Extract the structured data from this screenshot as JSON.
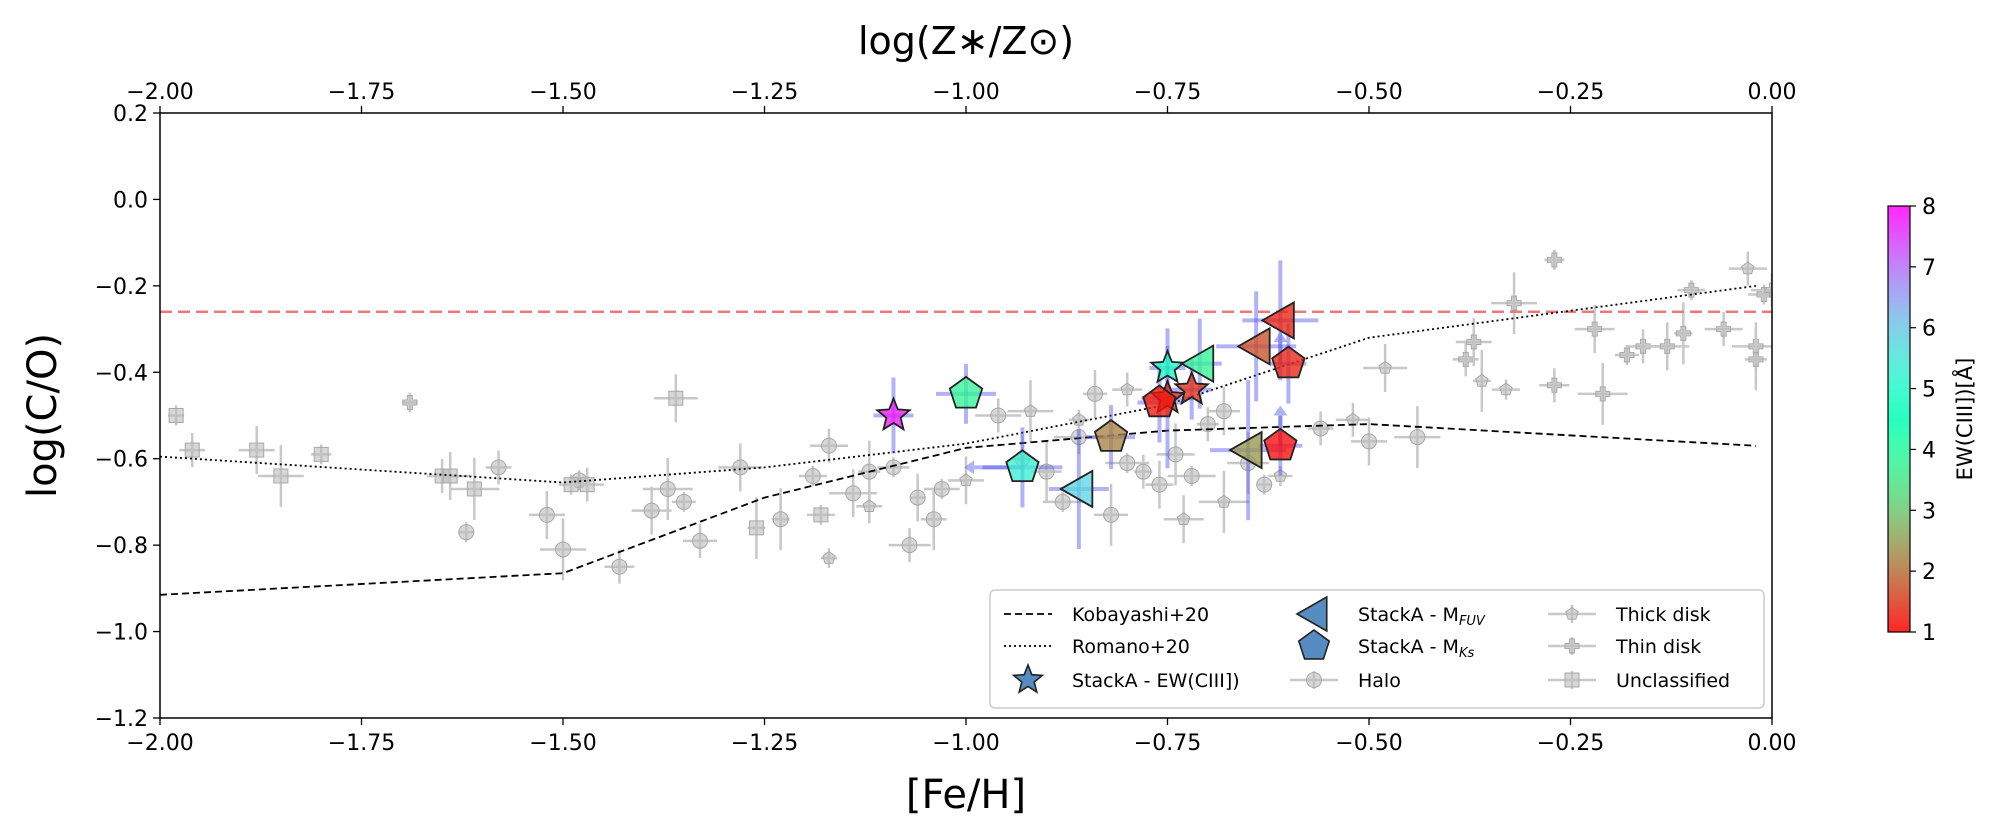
{
  "chart_data": {
    "type": "scatter",
    "xlabel": "[Fe/H]",
    "ylabel": "log(C/O)",
    "top_xlabel": "log(Z∗/Z⊙)",
    "xlim": [
      -2.0,
      0.0
    ],
    "ylim": [
      -1.2,
      0.2
    ],
    "x_ticks": [
      "−2.00",
      "−1.75",
      "−1.50",
      "−1.25",
      "−1.00",
      "−0.75",
      "−0.50",
      "−0.25",
      "0.00"
    ],
    "x_tick_values": [
      -2.0,
      -1.75,
      -1.5,
      -1.25,
      -1.0,
      -0.75,
      -0.5,
      -0.25,
      0.0
    ],
    "y_ticks": [
      "−1.2",
      "−1.0",
      "−0.8",
      "−0.6",
      "−0.4",
      "−0.2",
      "0.0",
      "0.2"
    ],
    "y_tick_values": [
      -1.2,
      -1.0,
      -0.8,
      -0.6,
      -0.4,
      -0.2,
      0.0,
      0.2
    ],
    "hline": {
      "y": -0.26,
      "color": "#e87a7a"
    },
    "colorbar": {
      "label": "EW(CIII])[Å]",
      "ticks": [
        "1",
        "2",
        "3",
        "4",
        "5",
        "6",
        "7",
        "8"
      ],
      "tick_values": [
        1,
        2,
        3,
        4,
        5,
        6,
        7,
        8
      ],
      "range": [
        1,
        8
      ]
    },
    "models": [
      {
        "name": "Kobayashi+20",
        "style": "dashed",
        "x": [
          -2.0,
          -1.5,
          -1.25,
          -1.0,
          -0.75,
          -0.5,
          -0.02
        ],
        "y": [
          -0.915,
          -0.865,
          -0.69,
          -0.575,
          -0.535,
          -0.52,
          -0.57
        ]
      },
      {
        "name": "Romano+20",
        "style": "dotted",
        "x": [
          -2.0,
          -1.5,
          -1.25,
          -1.0,
          -0.75,
          -0.5,
          -0.02
        ],
        "y": [
          -0.595,
          -0.655,
          -0.62,
          -0.565,
          -0.475,
          -0.32,
          -0.2
        ]
      }
    ],
    "stars": {
      "halo": [
        [
          -1.62,
          -0.77
        ],
        [
          -1.58,
          -0.62
        ],
        [
          -1.52,
          -0.73
        ],
        [
          -1.5,
          -0.81
        ],
        [
          -1.48,
          -0.65
        ],
        [
          -1.43,
          -0.85
        ],
        [
          -1.39,
          -0.72
        ],
        [
          -1.37,
          -0.67
        ],
        [
          -1.35,
          -0.7
        ],
        [
          -1.33,
          -0.79
        ],
        [
          -1.28,
          -0.62
        ],
        [
          -1.23,
          -0.74
        ],
        [
          -1.19,
          -0.64
        ],
        [
          -1.17,
          -0.57
        ],
        [
          -1.14,
          -0.68
        ],
        [
          -1.12,
          -0.63
        ],
        [
          -1.09,
          -0.62
        ],
        [
          -1.07,
          -0.8
        ],
        [
          -1.06,
          -0.69
        ],
        [
          -1.04,
          -0.74
        ],
        [
          -1.03,
          -0.67
        ],
        [
          -0.96,
          -0.5
        ],
        [
          -0.93,
          -0.6
        ],
        [
          -0.9,
          -0.63
        ],
        [
          -0.88,
          -0.7
        ],
        [
          -0.86,
          -0.55
        ],
        [
          -0.84,
          -0.45
        ],
        [
          -0.82,
          -0.73
        ],
        [
          -0.8,
          -0.61
        ],
        [
          -0.78,
          -0.63
        ],
        [
          -0.76,
          -0.66
        ],
        [
          -0.74,
          -0.59
        ],
        [
          -0.72,
          -0.64
        ],
        [
          -0.7,
          -0.52
        ],
        [
          -0.68,
          -0.49
        ],
        [
          -0.65,
          -0.61
        ],
        [
          -0.63,
          -0.66
        ],
        [
          -0.56,
          -0.53
        ],
        [
          -0.5,
          -0.56
        ],
        [
          -0.44,
          -0.55
        ]
      ],
      "thick_disk": [
        [
          -1.17,
          -0.83
        ],
        [
          -1.12,
          -0.71
        ],
        [
          -1.0,
          -0.65
        ],
        [
          -0.92,
          -0.49
        ],
        [
          -0.86,
          -0.51
        ],
        [
          -0.8,
          -0.44
        ],
        [
          -0.73,
          -0.74
        ],
        [
          -0.68,
          -0.7
        ],
        [
          -0.61,
          -0.64
        ],
        [
          -0.52,
          -0.51
        ],
        [
          -0.48,
          -0.39
        ],
        [
          -0.36,
          -0.42
        ],
        [
          -0.33,
          -0.44
        ],
        [
          -0.03,
          -0.16
        ]
      ],
      "thin_disk": [
        [
          -1.69,
          -0.47
        ],
        [
          -0.38,
          -0.37
        ],
        [
          -0.37,
          -0.33
        ],
        [
          -0.32,
          -0.24
        ],
        [
          -0.27,
          -0.14
        ],
        [
          -0.27,
          -0.43
        ],
        [
          -0.22,
          -0.3
        ],
        [
          -0.21,
          -0.45
        ],
        [
          -0.18,
          -0.36
        ],
        [
          -0.16,
          -0.34
        ],
        [
          -0.13,
          -0.34
        ],
        [
          -0.11,
          -0.31
        ],
        [
          -0.1,
          -0.21
        ],
        [
          -0.06,
          -0.3
        ],
        [
          -0.02,
          -0.34
        ],
        [
          -0.02,
          -0.37
        ],
        [
          -0.01,
          -0.22
        ],
        [
          0.0,
          -0.21
        ]
      ],
      "unclassified": [
        [
          -1.98,
          -0.5
        ],
        [
          -1.96,
          -0.58
        ],
        [
          -1.88,
          -0.58
        ],
        [
          -1.85,
          -0.64
        ],
        [
          -1.8,
          -0.59
        ],
        [
          -1.65,
          -0.64
        ],
        [
          -1.64,
          -0.64
        ],
        [
          -1.61,
          -0.67
        ],
        [
          -1.49,
          -0.66
        ],
        [
          -1.47,
          -0.66
        ],
        [
          -1.36,
          -0.46
        ],
        [
          -1.26,
          -0.76
        ],
        [
          -1.18,
          -0.73
        ]
      ]
    },
    "stacks": [
      {
        "marker": "star",
        "x": -1.09,
        "y": -0.5,
        "ew": 7.8
      },
      {
        "marker": "star",
        "x": -0.75,
        "y": -0.39,
        "ew": 4.8
      },
      {
        "marker": "star",
        "x": -0.72,
        "y": -0.44,
        "ew": 1.4
      },
      {
        "marker": "star",
        "x": -0.75,
        "y": -0.46,
        "ew": 1.3
      },
      {
        "marker": "triangle",
        "x": -0.61,
        "y": -0.28,
        "ew": 1.3
      },
      {
        "marker": "triangle",
        "x": -0.64,
        "y": -0.34,
        "ew": 1.7
      },
      {
        "marker": "triangle",
        "x": -0.71,
        "y": -0.38,
        "ew": 3.8
      },
      {
        "marker": "triangle",
        "x": -0.65,
        "y": -0.58,
        "ew": 2.4
      },
      {
        "marker": "triangle",
        "x": -0.86,
        "y": -0.67,
        "ew": 5.8
      },
      {
        "marker": "pentagon",
        "x": -1.0,
        "y": -0.45,
        "ew": 3.8
      },
      {
        "marker": "pentagon",
        "x": -0.93,
        "y": -0.62,
        "ew": 5.3
      },
      {
        "marker": "pentagon",
        "x": -0.82,
        "y": -0.55,
        "ew": 2.2
      },
      {
        "marker": "pentagon",
        "x": -0.76,
        "y": -0.47,
        "ew": 1.2
      },
      {
        "marker": "pentagon",
        "x": -0.6,
        "y": -0.38,
        "ew": 1.3
      },
      {
        "marker": "pentagon",
        "x": -0.61,
        "y": -0.57,
        "ew": 1.1
      }
    ],
    "legend": {
      "position": "lower-right",
      "entries": [
        {
          "key": "kobayashi",
          "label": "Kobayashi+20"
        },
        {
          "key": "romano",
          "label": "Romano+20"
        },
        {
          "key": "stack-ew",
          "label": "StackA - EW(CIII])"
        },
        {
          "key": "stack-mfuv",
          "label": "StackA - M",
          "sub": "FUV"
        },
        {
          "key": "stack-mks",
          "label": "StackA - M",
          "sub": "Ks"
        },
        {
          "key": "halo",
          "label": "Halo"
        },
        {
          "key": "thick",
          "label": "Thick disk"
        },
        {
          "key": "thin",
          "label": "Thin disk"
        },
        {
          "key": "uncl",
          "label": "Unclassified"
        }
      ]
    }
  }
}
